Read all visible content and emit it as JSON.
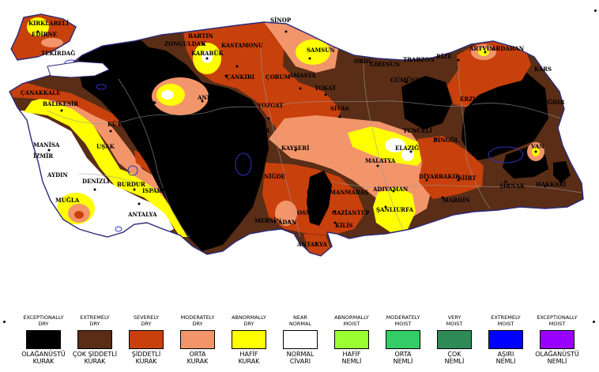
{
  "colors": {
    "exceptionally_dry": "#000000",
    "extremely_dry": "#5a2d16",
    "severely_dry": "#c8400c",
    "moderately_dry": "#f2956a",
    "abnormally_dry": "#ffff00",
    "near_normal": "#ffffff",
    "abnormally_moist": "#99ff33",
    "moderately_moist": "#33cc66",
    "very_moist": "#2e8b57",
    "extremely_moist": "#0000ff",
    "exceptionally_moist": "#9900ff"
  },
  "cities": [
    {
      "id": "kirklareli",
      "label": "KIRKLARELİ"
    },
    {
      "id": "edirne",
      "label": "EDİRNE"
    },
    {
      "id": "tekirdag",
      "label": "TEKİRDAĞ"
    },
    {
      "id": "canakkale",
      "label": "ÇANAKKALE"
    },
    {
      "id": "balikesir",
      "label": "BALIKESİR"
    },
    {
      "id": "manisa",
      "label": "MANİSA"
    },
    {
      "id": "izmir",
      "label": "İZMİR"
    },
    {
      "id": "aydin",
      "label": "AYDIN"
    },
    {
      "id": "mugla",
      "label": "MUĞLA"
    },
    {
      "id": "denizli",
      "label": "DENİZLİ"
    },
    {
      "id": "usak",
      "label": "UŞAK"
    },
    {
      "id": "kutahya",
      "label": "KÜTA"
    },
    {
      "id": "burdur",
      "label": "BURDUR"
    },
    {
      "id": "isparta",
      "label": "ISPARTA"
    },
    {
      "id": "antalya",
      "label": "ANTALYA"
    },
    {
      "id": "eskisehir",
      "label": "EŞKİ"
    },
    {
      "id": "ankara",
      "label": "ANKA"
    },
    {
      "id": "bartin",
      "label": "BARTIN"
    },
    {
      "id": "zonguldak",
      "label": "ZONGULDAK"
    },
    {
      "id": "karabuk",
      "label": "KARABÜK"
    },
    {
      "id": "kastamonu",
      "label": "KASTAMONU"
    },
    {
      "id": "cankiri",
      "label": "ÇANKIRI"
    },
    {
      "id": "sinop",
      "label": "SİNOP"
    },
    {
      "id": "samsun",
      "label": "SAMSUN"
    },
    {
      "id": "corum",
      "label": "ÇORUM"
    },
    {
      "id": "amasya",
      "label": "AMASYA"
    },
    {
      "id": "tokat",
      "label": "TOKAT"
    },
    {
      "id": "yozgat",
      "label": "YOZGAT"
    },
    {
      "id": "kirsehir",
      "label": "KIRŞEHİR"
    },
    {
      "id": "sivas",
      "label": "SİVAS"
    },
    {
      "id": "kayseri",
      "label": "KAYSERİ"
    },
    {
      "id": "nigde",
      "label": "NİĞDE"
    },
    {
      "id": "ordu",
      "label": "ORDU"
    },
    {
      "id": "giresun",
      "label": "GİRESUN"
    },
    {
      "id": "trabzon",
      "label": "TRABZON"
    },
    {
      "id": "rize",
      "label": "RİZE"
    },
    {
      "id": "artvin",
      "label": "ARTVİN"
    },
    {
      "id": "ardahan",
      "label": "ARDAHAN"
    },
    {
      "id": "kars",
      "label": "KARS"
    },
    {
      "id": "gumushane",
      "label": "GÜMÜŞHANE"
    },
    {
      "id": "erzurum",
      "label": "ERZURUM"
    },
    {
      "id": "igdir",
      "label": "IĞDIR"
    },
    {
      "id": "tunceli",
      "label": "TUNCELİ"
    },
    {
      "id": "bingol",
      "label": "BİNGÖL"
    },
    {
      "id": "elazig",
      "label": "ELAZIĞ"
    },
    {
      "id": "malatya",
      "label": "MALATYA"
    },
    {
      "id": "van",
      "label": "VAN"
    },
    {
      "id": "diyarbakir",
      "label": "DİYARBAKIR"
    },
    {
      "id": "siirt",
      "label": "SİİRT"
    },
    {
      "id": "sirnak",
      "label": "ŞIRNAK"
    },
    {
      "id": "hakkari",
      "label": "HAKKARİ"
    },
    {
      "id": "mardin",
      "label": "MARDİN"
    },
    {
      "id": "adiyaman",
      "label": "ADIYAMAN"
    },
    {
      "id": "sanliurfa",
      "label": "ŞANLIURFA"
    },
    {
      "id": "kahramanmaras",
      "label": "KAHRAMANMARAŞ"
    },
    {
      "id": "gaziantep",
      "label": "GAZİANTEP"
    },
    {
      "id": "kilis",
      "label": "KİLİS"
    },
    {
      "id": "osmaniye",
      "label": "OSM"
    },
    {
      "id": "adana",
      "label": "ADAN"
    },
    {
      "id": "mersin",
      "label": "MERSİN"
    },
    {
      "id": "antakya",
      "label": "ANTAKYA"
    }
  ],
  "legend": [
    {
      "key": "exceptionally_dry",
      "en": "EXCEPTIONALLY\nDRY",
      "tr": "OLAĞANÜSTÜ\nKURAK",
      "color": "#000000"
    },
    {
      "key": "extremely_dry",
      "en": "EXTREMELY\nDRY",
      "tr": "ÇOK ŞİDDETLİ\nKURAK",
      "color": "#5a2d16"
    },
    {
      "key": "severely_dry",
      "en": "SEVERELY\nDRY",
      "tr": "ŞİDDETLİ\nKURAK",
      "color": "#c8400c"
    },
    {
      "key": "moderately_dry",
      "en": "MODERATELY\nDRY",
      "tr": "ORTA\nKURAK",
      "color": "#f2956a"
    },
    {
      "key": "abnormally_dry",
      "en": "ABNORMALLY\nDRY",
      "tr": "HAFİF\nKURAK",
      "color": "#ffff00"
    },
    {
      "key": "near_normal",
      "en": "NEAR\nNORMAL",
      "tr": "NORMAL\nCİVARI",
      "color": "#ffffff"
    },
    {
      "key": "abnormally_moist",
      "en": "ABNORMALLY\nMOIST",
      "tr": "HAFİF\nNEMLİ",
      "color": "#99ff33"
    },
    {
      "key": "moderately_moist",
      "en": "MODERATELY\nMOIST",
      "tr": "ORTA\nNEMLİ",
      "color": "#33cc66"
    },
    {
      "key": "very_moist",
      "en": "VERY\nMOIST",
      "tr": "ÇOK\nNEMLİ",
      "color": "#2e8b57"
    },
    {
      "key": "extremely_moist",
      "en": "EXTREMELY\nMOIST",
      "tr": "AŞIRI\nNEMLİ",
      "color": "#0000ff"
    },
    {
      "key": "exceptionally_moist",
      "en": "EXCEPTIONALLY\nMOIST",
      "tr": "OLAĞANÜSTÜ\nNEMLİ",
      "color": "#9900ff"
    }
  ]
}
